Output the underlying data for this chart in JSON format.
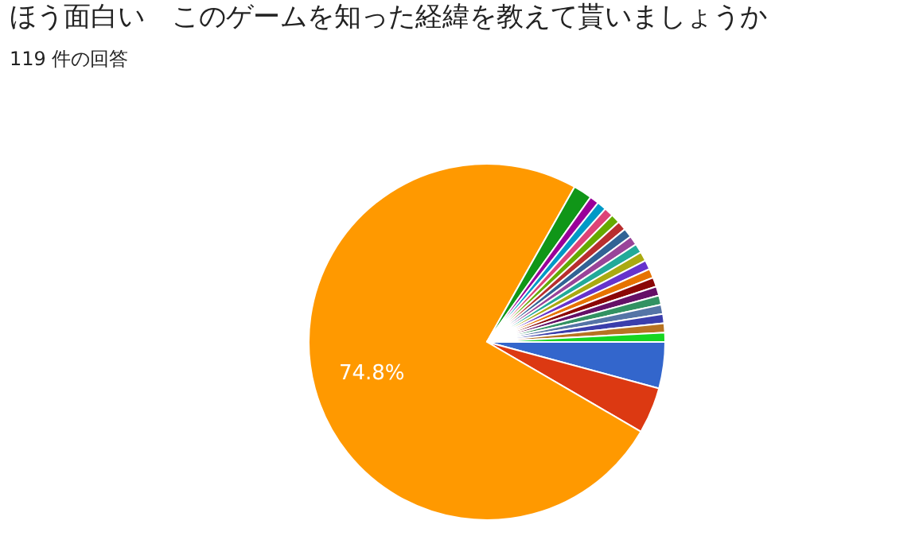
{
  "chart_data": {
    "type": "pie",
    "title": "ほう面白い　このゲームを知った経緯を教えて貰いましょうか",
    "subtitle": "119 件の回答",
    "categories": [
      null,
      null,
      null,
      null,
      null,
      null,
      null,
      null,
      null,
      null,
      null,
      null,
      null,
      null,
      null,
      null,
      null,
      null,
      null,
      null,
      null,
      null
    ],
    "values": [
      4.2,
      4.2,
      74.8,
      1.7,
      0.84,
      0.84,
      0.84,
      0.84,
      0.84,
      0.84,
      0.84,
      0.84,
      0.84,
      0.84,
      0.84,
      0.84,
      0.84,
      0.84,
      0.84,
      0.84,
      0.84,
      0.84
    ],
    "value_labels": [
      null,
      null,
      "74.8%",
      null,
      null,
      null,
      null,
      null,
      null,
      null,
      null,
      null,
      null,
      null,
      null,
      null,
      null,
      null,
      null,
      null,
      null,
      null
    ],
    "colors": [
      "#3366cc",
      "#dc3912",
      "#ff9900",
      "#109618",
      "#990099",
      "#0099c6",
      "#dd4477",
      "#66aa00",
      "#b82e2e",
      "#316395",
      "#994499",
      "#22aa99",
      "#aaaa11",
      "#6633cc",
      "#e67300",
      "#8b0707",
      "#651067",
      "#329262",
      "#5574a6",
      "#3b3eac",
      "#b77322",
      "#16d620"
    ],
    "legend": false
  }
}
